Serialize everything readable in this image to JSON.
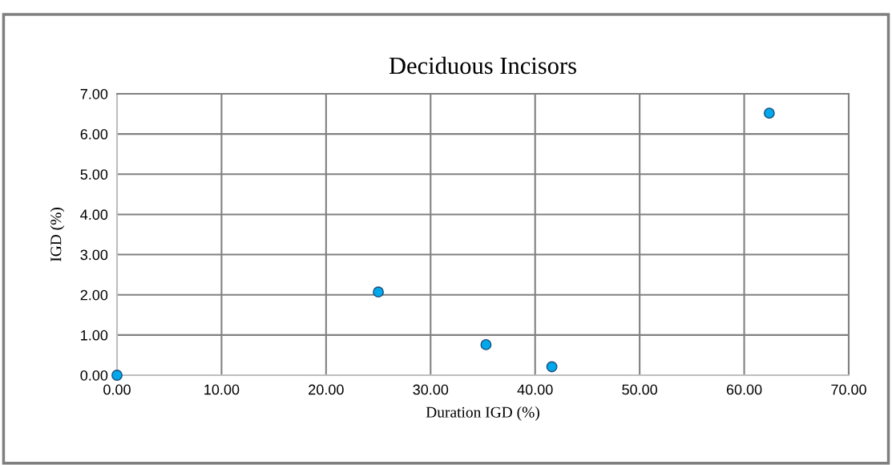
{
  "chart_data": {
    "type": "scatter",
    "title": "Deciduous Incisors",
    "xlabel": "Duration IGD (%)",
    "ylabel": "IGD (%)",
    "x": [
      0,
      25.0,
      35.3,
      41.6,
      62.4
    ],
    "series": [
      {
        "color": "#00a8ec",
        "values": [
          0,
          2.07,
          0.76,
          0.21,
          6.52
        ]
      }
    ],
    "xlim": [
      0,
      70
    ],
    "xticks": [
      {
        "value": 0,
        "label": "0.00"
      },
      {
        "value": 10,
        "label": "10.00"
      },
      {
        "value": 20,
        "label": "20.00"
      },
      {
        "value": 30,
        "label": "30.00"
      },
      {
        "value": 40,
        "label": "40.00"
      },
      {
        "value": 50,
        "label": "50.00"
      },
      {
        "value": 60,
        "label": "60.00"
      },
      {
        "value": 70,
        "label": "70.00"
      }
    ],
    "ylim": [
      0,
      7
    ],
    "yticks": [
      {
        "value": 0,
        "label": "0.00"
      },
      {
        "value": 1,
        "label": "1.00"
      },
      {
        "value": 2,
        "label": "2.00"
      },
      {
        "value": 3,
        "label": "3.00"
      },
      {
        "value": 4,
        "label": "4.00"
      },
      {
        "value": 5,
        "label": "5.00"
      },
      {
        "value": 6,
        "label": "6.00"
      },
      {
        "value": 7,
        "label": "7.00"
      }
    ],
    "grid": true,
    "marker": "circle"
  }
}
